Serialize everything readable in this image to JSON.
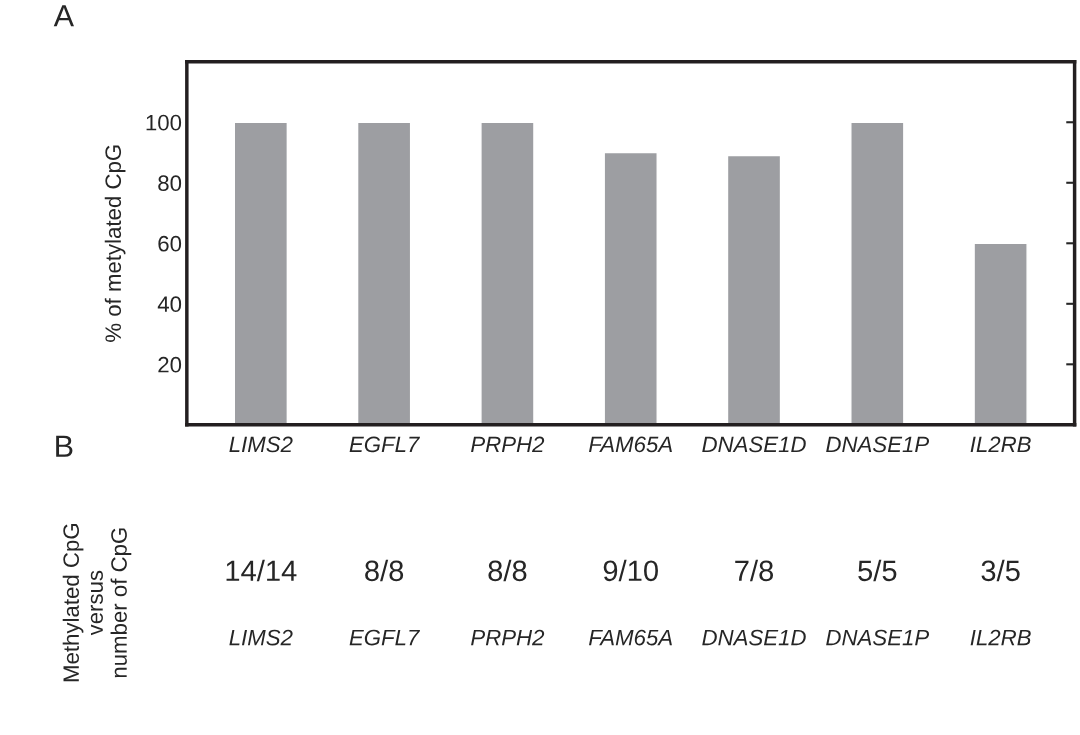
{
  "chart_data": [
    {
      "type": "bar",
      "title": "A",
      "ylabel": "% of metylated CpG",
      "categories": [
        "LIMS2",
        "EGFL7",
        "PRPH2",
        "FAM65A",
        "DNASE1D",
        "DNASE1P",
        "IL2RB"
      ],
      "values": [
        100,
        100,
        100,
        90,
        89,
        100,
        60
      ],
      "color": "#9d9ea2",
      "ylim": [
        0,
        120
      ],
      "yticks": [
        20,
        40,
        60,
        80,
        100
      ],
      "grid": false
    },
    {
      "type": "other",
      "title": "B",
      "ylabel": "Methylated CpG\nversus\nnumber of CpG",
      "categories": [
        "LIMS2",
        "EGFL7",
        "PRPH2",
        "FAM65A",
        "DNASE1D",
        "DNASE1P",
        "IL2RB"
      ],
      "annotations": [
        "14/14",
        "8/8",
        "8/8",
        "9/10",
        "7/8",
        "5/5",
        "3/5"
      ]
    }
  ]
}
